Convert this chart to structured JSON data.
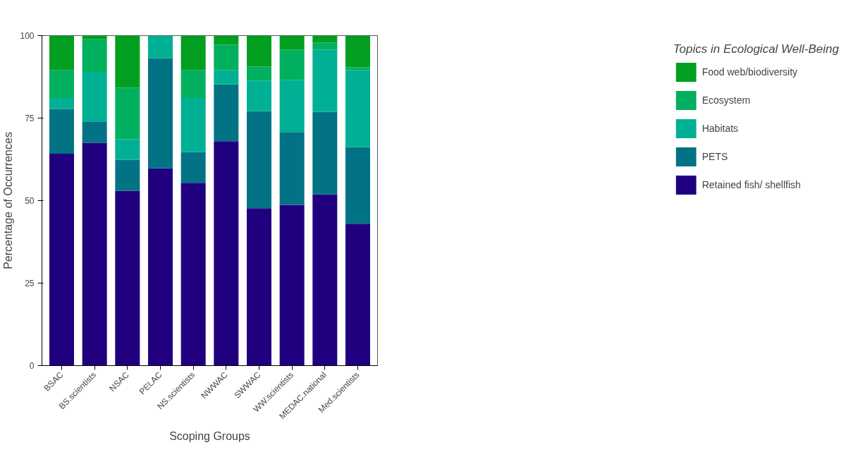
{
  "chart_data": {
    "type": "bar",
    "stacked": true,
    "xlabel": "Scoping Groups",
    "ylabel": "Percentage of Occurrences",
    "legend_title": "Topics in Ecological Well-Being",
    "categories": [
      "BSAC",
      "BS.scientists",
      "NSAC",
      "PELAC",
      "NS.scientists",
      "NWWAC",
      "SWWAC",
      "WW.scientists",
      "MEDAC.national",
      "Med.scientists"
    ],
    "series": [
      {
        "name": "Retained fish/ shellfish",
        "color": "#210080",
        "values": [
          64.2,
          67.5,
          53.0,
          59.8,
          55.4,
          68.0,
          47.7,
          48.7,
          51.9,
          43.0
        ]
      },
      {
        "name": "PETS",
        "color": "#027385",
        "values": [
          13.6,
          6.5,
          9.4,
          33.3,
          9.3,
          17.2,
          29.4,
          22.1,
          25.0,
          23.2
        ]
      },
      {
        "name": "Habitats",
        "color": "#00b095",
        "values": [
          3.3,
          14.8,
          6.2,
          6.9,
          16.4,
          4.3,
          9.3,
          15.7,
          18.8,
          23.4
        ]
      },
      {
        "name": "Ecosystem",
        "color": "#01b05e",
        "values": [
          8.5,
          10.1,
          15.6,
          0,
          8.5,
          7.7,
          4.2,
          9.3,
          2.2,
          0.8
        ]
      },
      {
        "name": "Food web/biodiversity",
        "color": "#029f21",
        "values": [
          10.4,
          1.1,
          15.8,
          0,
          10.4,
          2.8,
          9.4,
          4.2,
          2.1,
          9.6
        ]
      }
    ],
    "ylim": [
      0,
      100
    ],
    "yticks": [
      0,
      25,
      50,
      75,
      100
    ],
    "grid": false,
    "legend": "right"
  }
}
